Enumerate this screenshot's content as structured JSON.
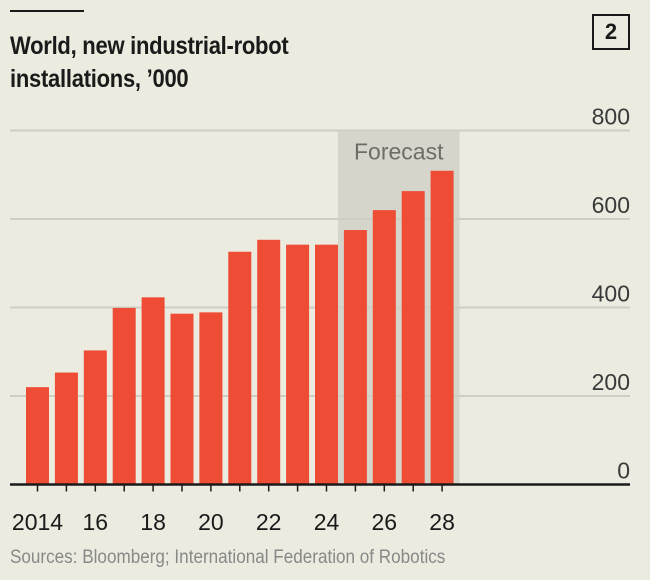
{
  "badge": "2",
  "source": "Sources: Bloomberg; International Federation of Robotics",
  "colors": {
    "bar": "#ee4c35",
    "forecast_band": "#d6d5cb",
    "grid": "#cfcec3",
    "background": "#ecebe0"
  },
  "chart_data": {
    "type": "bar",
    "title": "World, new industrial-robot installations, '000",
    "title_lines": [
      "World, new industrial-robot",
      "installations, ’000"
    ],
    "categories": [
      "2014",
      "2015",
      "2016",
      "2017",
      "2018",
      "2019",
      "2020",
      "2021",
      "2022",
      "2023",
      "2024",
      "2025",
      "2026",
      "2027",
      "2028"
    ],
    "values": [
      220,
      253,
      303,
      399,
      423,
      386,
      389,
      526,
      553,
      542,
      542,
      575,
      620,
      663,
      709
    ],
    "x_tick_labels": [
      "2014",
      "16",
      "18",
      "20",
      "22",
      "24",
      "26",
      "28"
    ],
    "y_ticks": [
      0,
      200,
      400,
      600,
      800
    ],
    "ylim": [
      0,
      800
    ],
    "y_axis_side": "right",
    "grid": true,
    "annotation": {
      "label": "Forecast",
      "from": "2025",
      "to": "2028"
    },
    "xlabel": "",
    "ylabel": ""
  }
}
